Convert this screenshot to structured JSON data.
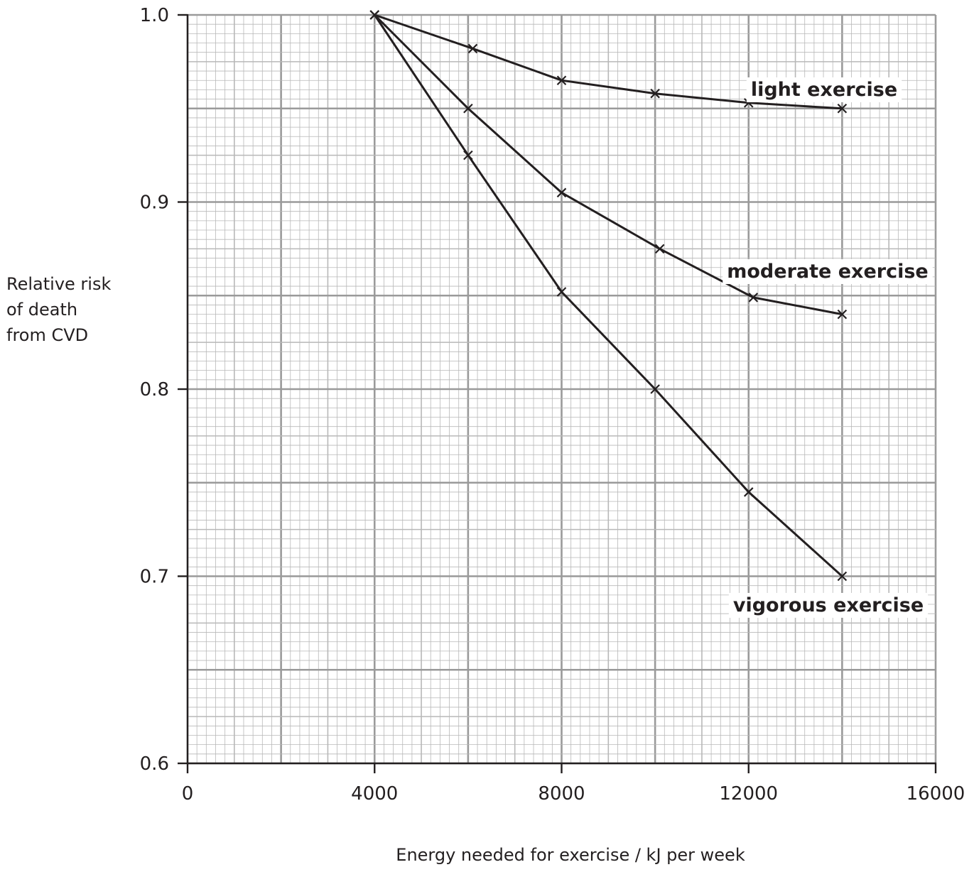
{
  "chart_data": {
    "type": "line",
    "title": "",
    "xlabel": "Energy needed for exercise / kJ per week",
    "ylabel_lines": [
      "Relative risk",
      "of death",
      "from CVD"
    ],
    "xlim": [
      0,
      16000
    ],
    "ylim": [
      0.6,
      1.0
    ],
    "x_ticks": [
      0,
      4000,
      8000,
      12000,
      16000
    ],
    "x_tick_labels": [
      "0",
      "4000",
      "8000",
      "12000",
      "16000"
    ],
    "y_ticks": [
      0.6,
      0.7,
      0.8,
      0.9,
      1.0
    ],
    "y_tick_labels": [
      "0.6",
      "0.7",
      "0.8",
      "0.9",
      "1.0"
    ],
    "grid": true,
    "legend": "none",
    "series": [
      {
        "name": "light exercise",
        "x": [
          4000,
          6100,
          8000,
          10000,
          12000,
          14000
        ],
        "y": [
          1.0,
          0.982,
          0.965,
          0.958,
          0.953,
          0.95
        ]
      },
      {
        "name": "moderate exercise",
        "x": [
          4000,
          6000,
          8000,
          10100,
          12100,
          14000
        ],
        "y": [
          1.0,
          0.95,
          0.905,
          0.875,
          0.849,
          0.84
        ]
      },
      {
        "name": "vigorous exercise",
        "x": [
          4000,
          6000,
          8000,
          10000,
          12000,
          14000
        ],
        "y": [
          1.0,
          0.925,
          0.852,
          0.8,
          0.745,
          0.7
        ]
      }
    ],
    "colors": {
      "grid_major": "#9a9a9a",
      "grid_minor": "#b8b8b8",
      "line": "#231f20"
    }
  }
}
